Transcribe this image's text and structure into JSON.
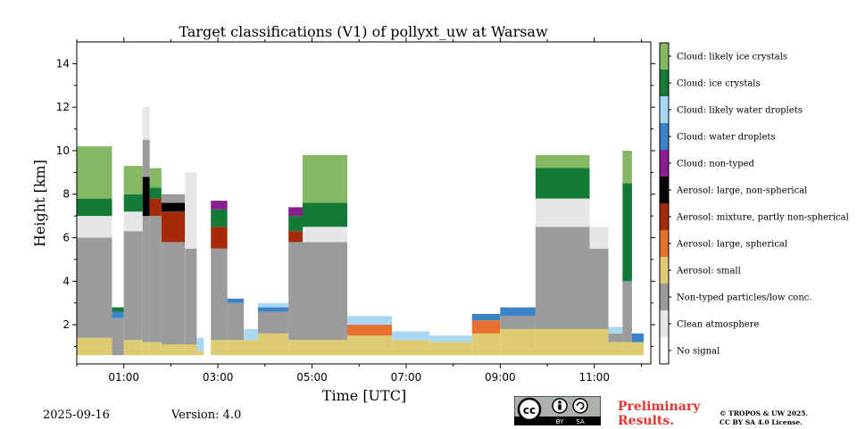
{
  "chart_data": {
    "type": "heatmap",
    "title": "Target classifications (V1) of pollyxt_uw at Warsaw",
    "xlabel": "Time [UTC]",
    "ylabel": "Height [km]",
    "xlim": [
      0,
      12.2
    ],
    "ylim": [
      0.2,
      15
    ],
    "x_ticks": [
      {
        "value": 1,
        "label": "01:00"
      },
      {
        "value": 3,
        "label": "03:00"
      },
      {
        "value": 5,
        "label": "05:00"
      },
      {
        "value": 7,
        "label": "07:00"
      },
      {
        "value": 9,
        "label": "09:00"
      },
      {
        "value": 11,
        "label": "11:00"
      }
    ],
    "y_ticks": [
      {
        "value": 2,
        "label": "2"
      },
      {
        "value": 4,
        "label": "4"
      },
      {
        "value": 6,
        "label": "6"
      },
      {
        "value": 8,
        "label": "8"
      },
      {
        "value": 10,
        "label": "10"
      },
      {
        "value": 12,
        "label": "12"
      },
      {
        "value": 14,
        "label": "14"
      }
    ],
    "classes": [
      {
        "label": "No signal",
        "color": "#ffffff"
      },
      {
        "label": "Clean atmosphere",
        "color": "#e6e6e6"
      },
      {
        "label": "Non-typed particles/low conc.",
        "color": "#9b9b9b"
      },
      {
        "label": "Aerosol: small",
        "color": "#dccb71"
      },
      {
        "label": "Aerosol: large, spherical",
        "color": "#e8702e"
      },
      {
        "label": "Aerosol: mixture, partly non-spherical",
        "color": "#a52a0a"
      },
      {
        "label": "Aerosol: large, non-spherical",
        "color": "#000000"
      },
      {
        "label": "Cloud: non-typed",
        "color": "#8a1e8e"
      },
      {
        "label": "Cloud: water droplets",
        "color": "#3a83c4"
      },
      {
        "label": "Cloud: likely water droplets",
        "color": "#a9d6f0"
      },
      {
        "label": "Cloud: ice crystals",
        "color": "#137a37"
      },
      {
        "label": "Cloud: likely ice crystals",
        "color": "#86b863"
      }
    ],
    "segments": [
      {
        "x0": 0.0,
        "x1": 0.75,
        "layers": [
          {
            "c": 3,
            "top": 1.4
          },
          {
            "c": 2,
            "top": 6.0
          },
          {
            "c": 1,
            "top": 7.0
          },
          {
            "c": 10,
            "top": 7.8
          },
          {
            "c": 11,
            "top": 10.2
          }
        ]
      },
      {
        "x0": 0.75,
        "x1": 1.0,
        "layers": [
          {
            "c": 2,
            "top": 2.3
          },
          {
            "c": 8,
            "top": 2.6
          },
          {
            "c": 10,
            "top": 2.8
          }
        ]
      },
      {
        "x0": 1.0,
        "x1": 1.4,
        "layers": [
          {
            "c": 3,
            "top": 1.3
          },
          {
            "c": 2,
            "top": 6.3
          },
          {
            "c": 1,
            "top": 7.2
          },
          {
            "c": 10,
            "top": 8.0
          },
          {
            "c": 11,
            "top": 9.3
          }
        ]
      },
      {
        "x0": 1.4,
        "x1": 1.55,
        "layers": [
          {
            "c": 3,
            "top": 1.2
          },
          {
            "c": 2,
            "top": 7.0
          },
          {
            "c": 6,
            "top": 8.8
          },
          {
            "c": 2,
            "top": 10.5
          },
          {
            "c": 1,
            "top": 12.0
          }
        ]
      },
      {
        "x0": 1.55,
        "x1": 1.8,
        "layers": [
          {
            "c": 3,
            "top": 1.2
          },
          {
            "c": 2,
            "top": 7.0
          },
          {
            "c": 5,
            "top": 7.8
          },
          {
            "c": 10,
            "top": 8.3
          },
          {
            "c": 11,
            "top": 9.2
          }
        ]
      },
      {
        "x0": 1.8,
        "x1": 2.3,
        "layers": [
          {
            "c": 3,
            "top": 1.1
          },
          {
            "c": 2,
            "top": 5.8
          },
          {
            "c": 5,
            "top": 7.2
          },
          {
            "c": 6,
            "top": 7.6
          },
          {
            "c": 2,
            "top": 8.0
          }
        ]
      },
      {
        "x0": 2.3,
        "x1": 2.55,
        "layers": [
          {
            "c": 3,
            "top": 1.1
          },
          {
            "c": 2,
            "top": 5.5
          },
          {
            "c": 1,
            "top": 9.0
          }
        ]
      },
      {
        "x0": 2.55,
        "x1": 2.7,
        "layers": [
          {
            "c": 3,
            "top": 0.8
          },
          {
            "c": 9,
            "top": 1.4
          }
        ]
      },
      {
        "x0": 2.85,
        "x1": 3.2,
        "layers": [
          {
            "c": 3,
            "top": 1.3
          },
          {
            "c": 2,
            "top": 5.5
          },
          {
            "c": 5,
            "top": 6.5
          },
          {
            "c": 10,
            "top": 7.3
          },
          {
            "c": 7,
            "top": 7.7
          }
        ]
      },
      {
        "x0": 3.2,
        "x1": 3.55,
        "layers": [
          {
            "c": 3,
            "top": 1.3
          },
          {
            "c": 2,
            "top": 3.0
          },
          {
            "c": 8,
            "top": 3.2
          }
        ]
      },
      {
        "x0": 3.55,
        "x1": 3.85,
        "layers": [
          {
            "c": 3,
            "top": 1.3
          },
          {
            "c": 9,
            "top": 1.8
          }
        ]
      },
      {
        "x0": 3.85,
        "x1": 4.5,
        "layers": [
          {
            "c": 3,
            "top": 1.6
          },
          {
            "c": 2,
            "top": 2.6
          },
          {
            "c": 8,
            "top": 2.8
          },
          {
            "c": 9,
            "top": 3.0
          }
        ]
      },
      {
        "x0": 4.5,
        "x1": 4.8,
        "layers": [
          {
            "c": 3,
            "top": 1.3
          },
          {
            "c": 2,
            "top": 5.8
          },
          {
            "c": 5,
            "top": 6.3
          },
          {
            "c": 10,
            "top": 7.0
          },
          {
            "c": 7,
            "top": 7.4
          }
        ]
      },
      {
        "x0": 4.8,
        "x1": 5.75,
        "layers": [
          {
            "c": 3,
            "top": 1.3
          },
          {
            "c": 2,
            "top": 5.8
          },
          {
            "c": 1,
            "top": 6.5
          },
          {
            "c": 10,
            "top": 7.6
          },
          {
            "c": 11,
            "top": 9.8
          }
        ]
      },
      {
        "x0": 5.75,
        "x1": 6.7,
        "layers": [
          {
            "c": 3,
            "top": 1.5
          },
          {
            "c": 4,
            "top": 2.0
          },
          {
            "c": 9,
            "top": 2.4
          }
        ]
      },
      {
        "x0": 6.7,
        "x1": 7.5,
        "layers": [
          {
            "c": 3,
            "top": 1.3
          },
          {
            "c": 9,
            "top": 1.7
          }
        ]
      },
      {
        "x0": 7.5,
        "x1": 8.4,
        "layers": [
          {
            "c": 3,
            "top": 1.2
          },
          {
            "c": 9,
            "top": 1.5
          }
        ]
      },
      {
        "x0": 8.4,
        "x1": 9.0,
        "layers": [
          {
            "c": 3,
            "top": 1.6
          },
          {
            "c": 4,
            "top": 2.2
          },
          {
            "c": 8,
            "top": 2.5
          }
        ]
      },
      {
        "x0": 9.0,
        "x1": 9.75,
        "layers": [
          {
            "c": 3,
            "top": 1.8
          },
          {
            "c": 2,
            "top": 2.4
          },
          {
            "c": 8,
            "top": 2.8
          }
        ]
      },
      {
        "x0": 9.75,
        "x1": 10.9,
        "layers": [
          {
            "c": 3,
            "top": 1.8
          },
          {
            "c": 2,
            "top": 6.5
          },
          {
            "c": 1,
            "top": 7.8
          },
          {
            "c": 10,
            "top": 9.2
          },
          {
            "c": 11,
            "top": 9.8
          }
        ]
      },
      {
        "x0": 10.9,
        "x1": 11.3,
        "layers": [
          {
            "c": 3,
            "top": 1.8
          },
          {
            "c": 2,
            "top": 5.5
          },
          {
            "c": 1,
            "top": 6.5
          }
        ]
      },
      {
        "x0": 11.3,
        "x1": 11.6,
        "layers": [
          {
            "c": 3,
            "top": 1.2
          },
          {
            "c": 2,
            "top": 1.6
          },
          {
            "c": 9,
            "top": 1.9
          }
        ]
      },
      {
        "x0": 11.6,
        "x1": 11.8,
        "layers": [
          {
            "c": 3,
            "top": 1.2
          },
          {
            "c": 2,
            "top": 4.0
          },
          {
            "c": 10,
            "top": 8.5
          },
          {
            "c": 11,
            "top": 10.0
          }
        ]
      },
      {
        "x0": 11.8,
        "x1": 12.05,
        "layers": [
          {
            "c": 3,
            "top": 1.2
          },
          {
            "c": 8,
            "top": 1.6
          }
        ]
      }
    ]
  },
  "footer": {
    "date": "2025-09-16",
    "version": "Version: 4.0",
    "prelim_line1": "Preliminary",
    "prelim_line2": "Results.",
    "copyright_line1": "© TROPOS & UW 2025.",
    "copyright_line2": "CC BY SA 4.0 License."
  },
  "license_badge": {
    "text_cc": "cc",
    "text_by": "BY",
    "text_sa": "SA"
  }
}
